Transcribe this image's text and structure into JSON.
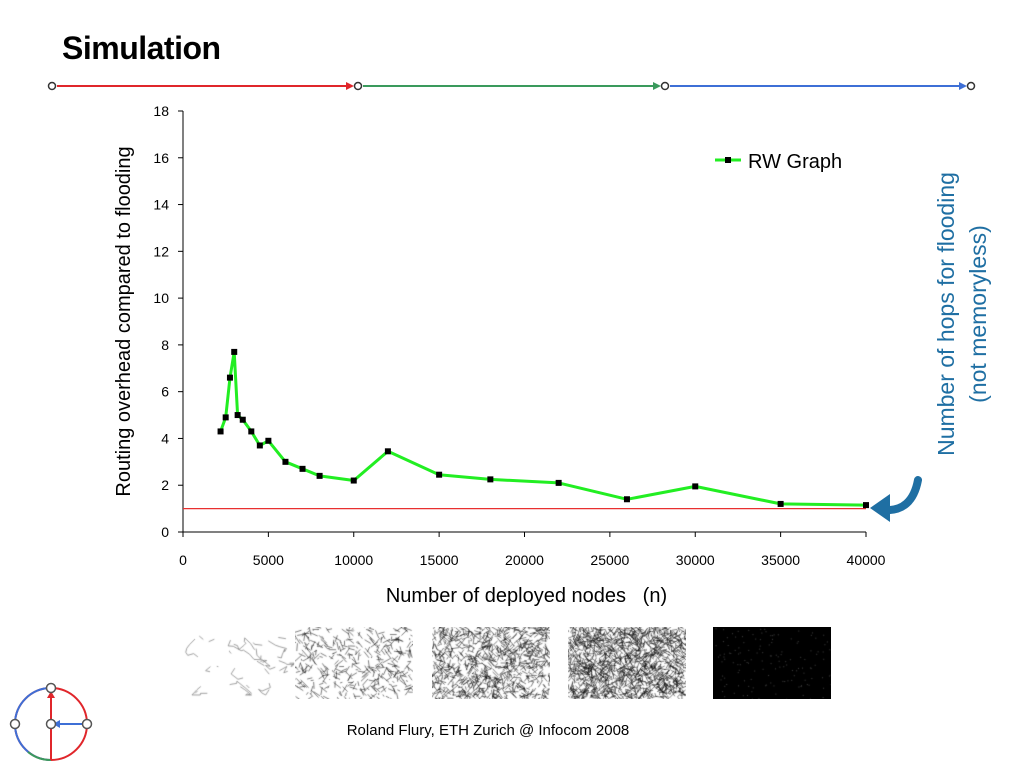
{
  "slide": {
    "title": "Simulation",
    "footer": "Roland Flury, ETH Zurich @ Infocom 2008",
    "side_note": [
      "Number of hops for flooding",
      "(not memoryless)"
    ]
  },
  "progress": {
    "segment_colors": [
      "#e0262b",
      "#3a9a5c",
      "#3e6fd6"
    ]
  },
  "colors": {
    "series": "#22ee22",
    "reference_line": "#e83030",
    "annotation": "#1f6fa3"
  },
  "chart_data": {
    "type": "line",
    "title": "",
    "xlabel": "Number of deployed nodes   (n)",
    "ylabel": "Routing overhead compared to flooding",
    "xlim": [
      0,
      40000
    ],
    "ylim": [
      0,
      18
    ],
    "x_ticks": [
      0,
      5000,
      10000,
      15000,
      20000,
      25000,
      30000,
      35000,
      40000
    ],
    "y_ticks": [
      0,
      2,
      4,
      6,
      8,
      10,
      12,
      14,
      16,
      18
    ],
    "grid": false,
    "legend_position": "top-right",
    "series": [
      {
        "name": "RW Graph",
        "x": [
          2200,
          2500,
          2750,
          3000,
          3200,
          3500,
          4000,
          4500,
          5000,
          6000,
          7000,
          8000,
          10000,
          12000,
          15000,
          18000,
          22000,
          26000,
          30000,
          35000,
          40000
        ],
        "y": [
          4.3,
          4.9,
          6.6,
          7.7,
          5.0,
          4.8,
          4.3,
          3.7,
          3.9,
          3.0,
          2.7,
          2.4,
          2.2,
          3.45,
          2.45,
          2.25,
          2.1,
          1.4,
          1.95,
          1.2,
          1.15
        ]
      }
    ],
    "reference_line": {
      "y": 1
    }
  },
  "thumbnails": [
    {
      "name": "sparse network",
      "density": 0.02
    },
    {
      "name": "medium network",
      "density": 0.12
    },
    {
      "name": "dense network",
      "density": 0.45
    },
    {
      "name": "denser network",
      "density": 0.75
    },
    {
      "name": "densest network",
      "density": 0.97
    }
  ]
}
